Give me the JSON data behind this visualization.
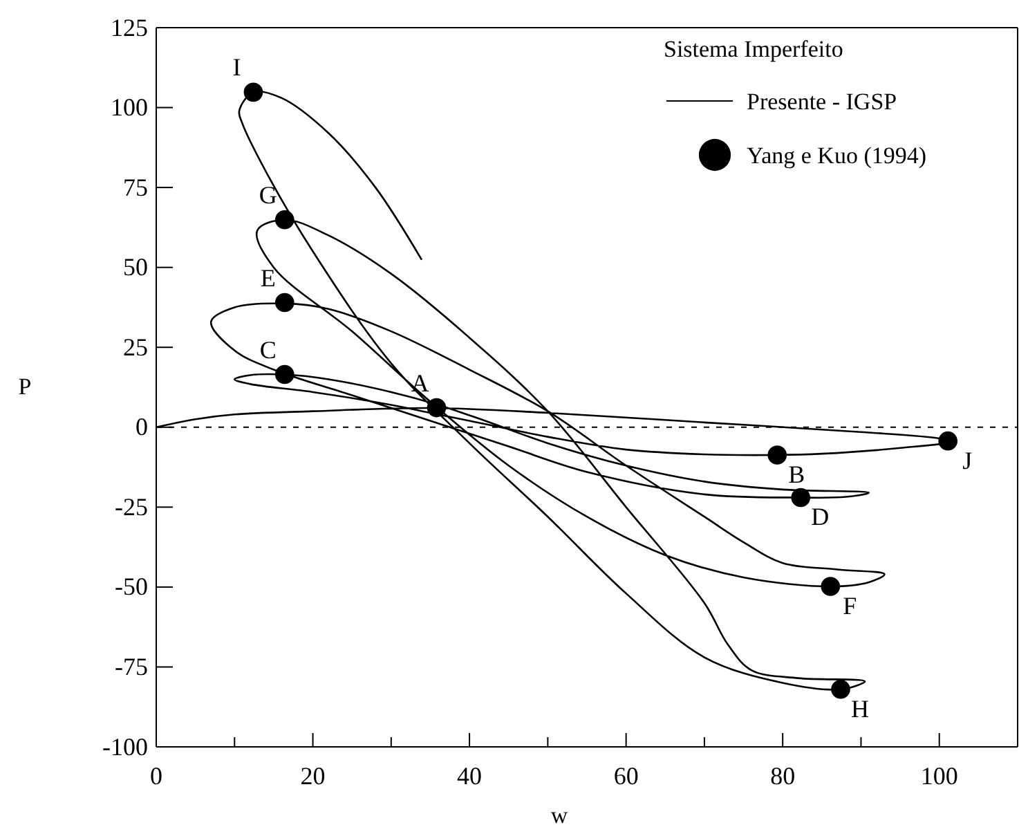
{
  "chart_data": {
    "type": "line",
    "xlabel": "w",
    "ylabel": "P",
    "legend_title": "Sistema Imperfeito",
    "xlim": [
      0,
      110
    ],
    "ylim": [
      -100,
      125
    ],
    "xticks": [
      0,
      {
        "value": 10,
        "label": null
      },
      20,
      {
        "value": 30,
        "label": null
      },
      40,
      {
        "value": 50,
        "label": null
      },
      60,
      {
        "value": 70,
        "label": null
      },
      80,
      {
        "value": 90,
        "label": null
      },
      100,
      {
        "value": 110,
        "label": null
      }
    ],
    "yticks": [
      -100,
      -75,
      -50,
      -25,
      0,
      25,
      50,
      75,
      100,
      125
    ],
    "grid": false,
    "legend": "top right",
    "ref_lines": [
      {
        "axis": "y",
        "value": 0,
        "line_style": "dashed"
      }
    ],
    "series": [
      {
        "name": "Presente - IGSP",
        "color": "#000000",
        "marker": "none",
        "line_style": "solid",
        "x": [
          0,
          5,
          10,
          20,
          35,
          50,
          70,
          90,
          100,
          101.5,
          95,
          85,
          79,
          70,
          60,
          50,
          40,
          35,
          30,
          20,
          12,
          10,
          12,
          16.4,
          22,
          30,
          36,
          42,
          50,
          60,
          70,
          80,
          91,
          88,
          82.3,
          70,
          55,
          45,
          35,
          25,
          15,
          10,
          7,
          10,
          16.4,
          22,
          30,
          40,
          50,
          60,
          70,
          75,
          80,
          87,
          93,
          91,
          86.1,
          75,
          65,
          55,
          45,
          35,
          25,
          15,
          12.9,
          16.4,
          22,
          30,
          40,
          50,
          60,
          70,
          73,
          76,
          82,
          90.5,
          87.4,
          80,
          70,
          60,
          50,
          40,
          30,
          20,
          14,
          11,
          10.6,
          12.4,
          16,
          22,
          28,
          33.9
        ],
        "values": [
          0,
          2.5,
          4,
          5,
          6,
          4.5,
          1.5,
          -1.5,
          -3.5,
          -4.5,
          -6.5,
          -8.3,
          -8.7,
          -8.5,
          -7,
          -3,
          2,
          4.5,
          7,
          11,
          13.5,
          15,
          16.3,
          16.5,
          15,
          11,
          7,
          2,
          -5,
          -12,
          -17,
          -19.5,
          -20.5,
          -21.8,
          -22,
          -21,
          -14,
          -6,
          2,
          10,
          18,
          24,
          33,
          37.5,
          38.7,
          37,
          30,
          18,
          5,
          -12,
          -28,
          -36,
          -42.5,
          -44.5,
          -46,
          -48.5,
          -49.8,
          -47,
          -40,
          -28,
          -12,
          8,
          30,
          50,
          61.5,
          64.9,
          60,
          48,
          28,
          5,
          -25,
          -55,
          -68,
          -76,
          -78.5,
          -79.5,
          -82,
          -80,
          -72,
          -52,
          -28,
          -5,
          20,
          55,
          80,
          95,
          99,
          104.8,
          103,
          92,
          75,
          52.4
        ]
      },
      {
        "name": "Yang e Kuo (1994)",
        "type": "scatter",
        "color": "#000000",
        "marker": "circle",
        "x": [
          12.4,
          16.4,
          16.4,
          16.4,
          35.8,
          79.3,
          101.1,
          82.3,
          86.1,
          87.4
        ],
        "values": [
          104.8,
          64.9,
          39,
          16.5,
          6.1,
          -8.7,
          -4.3,
          -22,
          -49.8,
          -82
        ]
      }
    ],
    "annotations": [
      {
        "text": "I",
        "x": 12.4,
        "y": 104.8
      },
      {
        "text": "G",
        "x": 16.4,
        "y": 64.9
      },
      {
        "text": "E",
        "x": 16.4,
        "y": 39
      },
      {
        "text": "C",
        "x": 16.4,
        "y": 16.5
      },
      {
        "text": "A",
        "x": 35.8,
        "y": 6.1
      },
      {
        "text": "B",
        "x": 79.3,
        "y": -8.7
      },
      {
        "text": "J",
        "x": 101.1,
        "y": -4.3
      },
      {
        "text": "D",
        "x": 82.3,
        "y": -22
      },
      {
        "text": "F",
        "x": 86.1,
        "y": -49.8
      },
      {
        "text": "H",
        "x": 87.4,
        "y": -82
      }
    ]
  }
}
